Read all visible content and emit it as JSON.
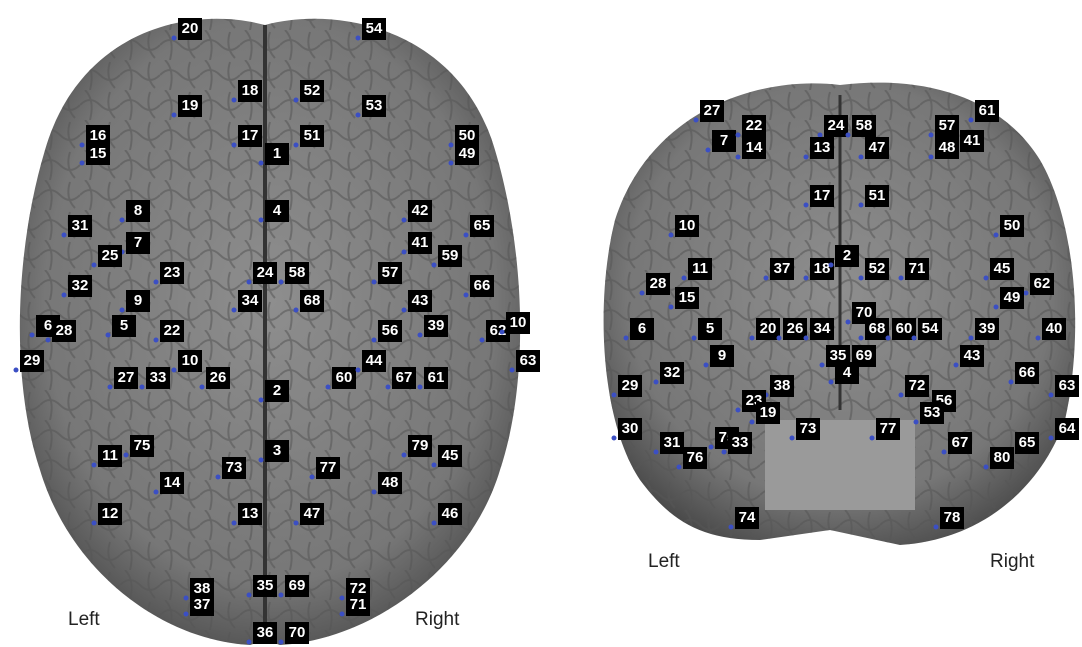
{
  "views": [
    {
      "electrodes": [
        "20",
        "54",
        "18",
        "52",
        "19",
        "53",
        "16",
        "15",
        "17",
        "51",
        "1",
        "50",
        "49",
        "8",
        "4",
        "42",
        "31",
        "7",
        "41",
        "65",
        "25",
        "59",
        "23",
        "24",
        "58",
        "57",
        "32",
        "66",
        "9",
        "34",
        "68",
        "43",
        "6",
        "28",
        "5",
        "22",
        "56",
        "39",
        "62",
        "10",
        "29",
        "10",
        "63",
        "27",
        "33",
        "26",
        "60",
        "44",
        "67",
        "61",
        "2",
        "75",
        "11",
        "79",
        "45",
        "3",
        "73",
        "77",
        "14",
        "48",
        "12",
        "13",
        "47",
        "46",
        "38",
        "72",
        "35",
        "69",
        "37",
        "71",
        "36",
        "70"
      ],
      "left": "Left",
      "right": "Right"
    },
    {
      "electrodes": [
        "27",
        "61",
        "7",
        "22",
        "14",
        "24",
        "58",
        "57",
        "41",
        "13",
        "47",
        "48",
        "17",
        "51",
        "10",
        "50",
        "11",
        "37",
        "18",
        "2",
        "52",
        "71",
        "45",
        "28",
        "62",
        "15",
        "49",
        "6",
        "5",
        "20",
        "26",
        "34",
        "70",
        "68",
        "60",
        "54",
        "39",
        "40",
        "9",
        "35",
        "69",
        "43",
        "32",
        "4",
        "66",
        "29",
        "38",
        "72",
        "63",
        "23",
        "56",
        "53",
        "19",
        "30",
        "31",
        "73",
        "77",
        "75",
        "33",
        "67",
        "65",
        "64",
        "76",
        "80",
        "74",
        "78"
      ],
      "left": "Left",
      "right": "Right"
    }
  ]
}
